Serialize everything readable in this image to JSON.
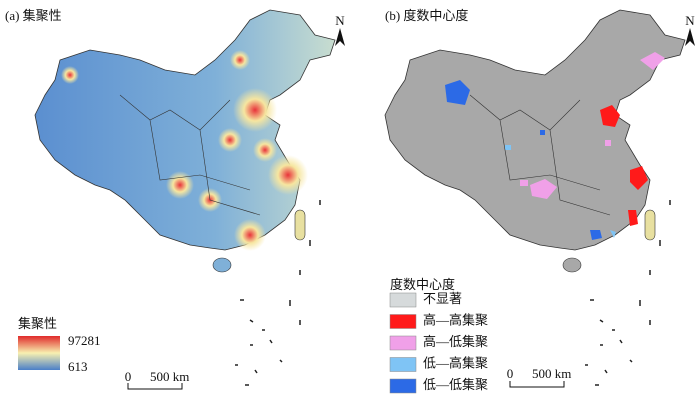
{
  "panels": [
    {
      "label": "(a) 集聚性",
      "north": "N",
      "legend_title": "集聚性",
      "legend_max": 97281,
      "legend_min": 613,
      "scale": {
        "zero": "0",
        "distance": "500 km"
      }
    },
    {
      "label": "(b) 度数中心度",
      "north": "N",
      "legend_title": "度数中心度",
      "legend_items": [
        {
          "label": "不显著",
          "color": "#d6dadb"
        },
        {
          "label": "高—高集聚",
          "color": "#ff1a1a"
        },
        {
          "label": "高—低集聚",
          "color": "#f0a0e8"
        },
        {
          "label": "低—高集聚",
          "color": "#7fc4f5"
        },
        {
          "label": "低—低集聚",
          "color": "#2c6ae6"
        }
      ],
      "scale": {
        "zero": "0",
        "distance": "500 km"
      }
    }
  ]
}
